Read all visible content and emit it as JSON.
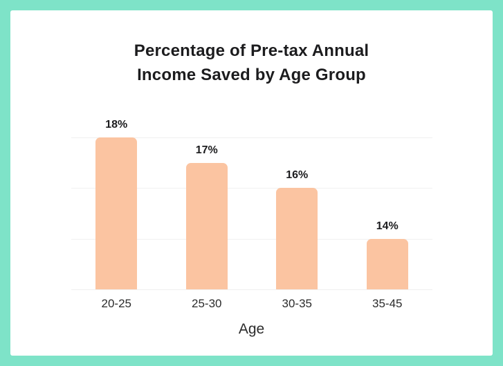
{
  "chart_data": {
    "type": "bar",
    "title": "Percentage of Pre-tax Annual Income Saved by Age Group",
    "title_line1": "Percentage of Pre-tax Annual",
    "title_line2": "Income Saved by Age Group",
    "xlabel": "Age",
    "ylabel": "",
    "categories": [
      "20-25",
      "25-30",
      "30-35",
      "35-45"
    ],
    "values": [
      18,
      17,
      16,
      14
    ],
    "value_labels": [
      "18%",
      "17%",
      "16%",
      "14%"
    ],
    "ylim": [
      12,
      18
    ],
    "gridline_values": [
      12,
      14,
      16,
      18
    ],
    "grid": "horizontal",
    "legend": "none"
  },
  "colors": {
    "border_background": "#7EE3C8",
    "card": "#FFFFFF",
    "bar": "#FBC4A1",
    "gridline": "#F0F0F0",
    "title_text": "#1C1C1E",
    "label_text": "#2B2B2B"
  }
}
